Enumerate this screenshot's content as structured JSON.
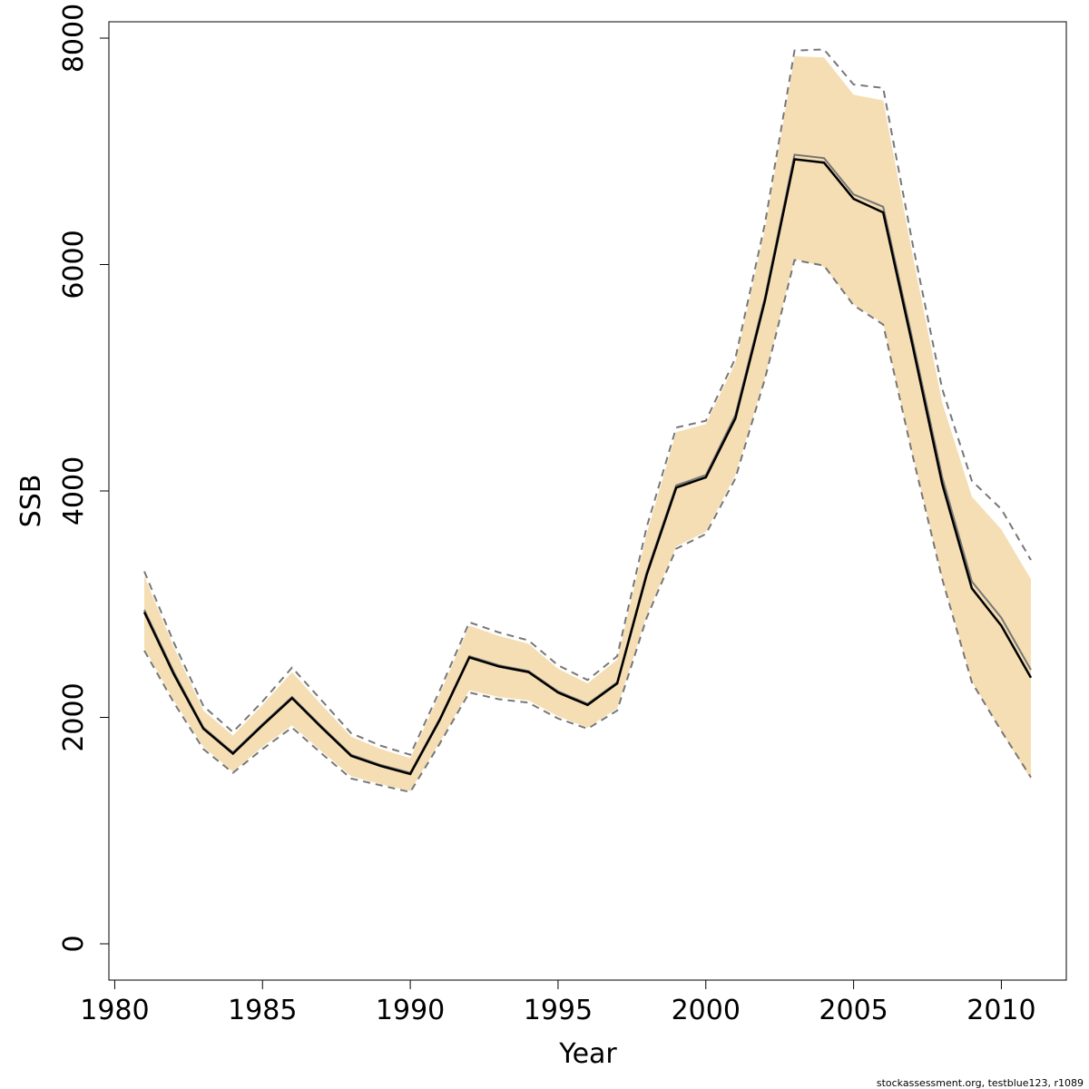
{
  "chart_data": {
    "type": "line",
    "xlabel": "Year",
    "ylabel": "SSB",
    "xlim": [
      1980,
      2012
    ],
    "ylim": [
      0,
      8000
    ],
    "x_ticks": [
      1980,
      1985,
      1990,
      1995,
      2000,
      2005,
      2010
    ],
    "y_ticks": [
      0,
      2000,
      4000,
      6000,
      8000
    ],
    "x_tick_labels": [
      "1980",
      "1985",
      "1990",
      "1995",
      "2000",
      "2005",
      "2010"
    ],
    "y_tick_labels": [
      "0",
      "2000",
      "4000",
      "6000",
      "8000"
    ],
    "grid": false,
    "years": [
      1981,
      1982,
      1983,
      1984,
      1985,
      1986,
      1987,
      1988,
      1989,
      1990,
      1991,
      1992,
      1993,
      1994,
      1995,
      1996,
      1997,
      1998,
      1999,
      2000,
      2001,
      2002,
      2003,
      2004,
      2005,
      2006,
      2007,
      2008,
      2009,
      2010,
      2011
    ],
    "series": [
      {
        "role": "estimate",
        "color": "#000000",
        "values": [
          2930,
          2380,
          1900,
          1680,
          1930,
          2170,
          1910,
          1660,
          1570,
          1500,
          1980,
          2530,
          2450,
          2400,
          2220,
          2110,
          2300,
          3260,
          4030,
          4120,
          4640,
          5680,
          6930,
          6900,
          6580,
          6460,
          5280,
          4060,
          3140,
          2810,
          2350
        ]
      },
      {
        "role": "reference",
        "color": "#777777",
        "values": [
          2950,
          2400,
          1910,
          1690,
          1940,
          2180,
          1920,
          1670,
          1580,
          1510,
          1990,
          2540,
          2460,
          2410,
          2230,
          2120,
          2310,
          3280,
          4050,
          4140,
          4670,
          5710,
          6970,
          6940,
          6620,
          6510,
          5330,
          4120,
          3200,
          2880,
          2420
        ]
      },
      {
        "role": "confidence-interval-shaded",
        "color": "#F5DEB3",
        "upper": [
          3250,
          2620,
          2060,
          1840,
          2110,
          2400,
          2110,
          1830,
          1720,
          1640,
          2210,
          2810,
          2720,
          2650,
          2430,
          2300,
          2510,
          3620,
          4520,
          4590,
          5130,
          6310,
          7840,
          7830,
          7500,
          7450,
          6080,
          4780,
          3950,
          3660,
          3220
        ],
        "lower": [
          2610,
          2150,
          1740,
          1520,
          1740,
          1930,
          1700,
          1480,
          1410,
          1350,
          1780,
          2240,
          2180,
          2150,
          2010,
          1910,
          2080,
          2900,
          3510,
          3640,
          4140,
          5000,
          6050,
          5980,
          5650,
          5480,
          4320,
          3230,
          2320,
          1880,
          1450
        ]
      },
      {
        "role": "confidence-interval-dashed",
        "color": "#777777",
        "upper": [
          3290,
          2660,
          2100,
          1870,
          2140,
          2440,
          2150,
          1860,
          1750,
          1670,
          2240,
          2840,
          2750,
          2680,
          2460,
          2330,
          2540,
          3680,
          4560,
          4620,
          5170,
          6360,
          7890,
          7900,
          7590,
          7560,
          6180,
          4900,
          4090,
          3840,
          3390
        ],
        "lower": [
          2590,
          2130,
          1720,
          1510,
          1720,
          1910,
          1680,
          1460,
          1400,
          1340,
          1770,
          2220,
          2160,
          2130,
          1990,
          1900,
          2060,
          2880,
          3490,
          3620,
          4110,
          4990,
          6040,
          5990,
          5640,
          5470,
          4310,
          3220,
          2310,
          1880,
          1470
        ]
      }
    ]
  },
  "footer": {
    "credit": "stockassessment.org, testblue123, r1089"
  }
}
